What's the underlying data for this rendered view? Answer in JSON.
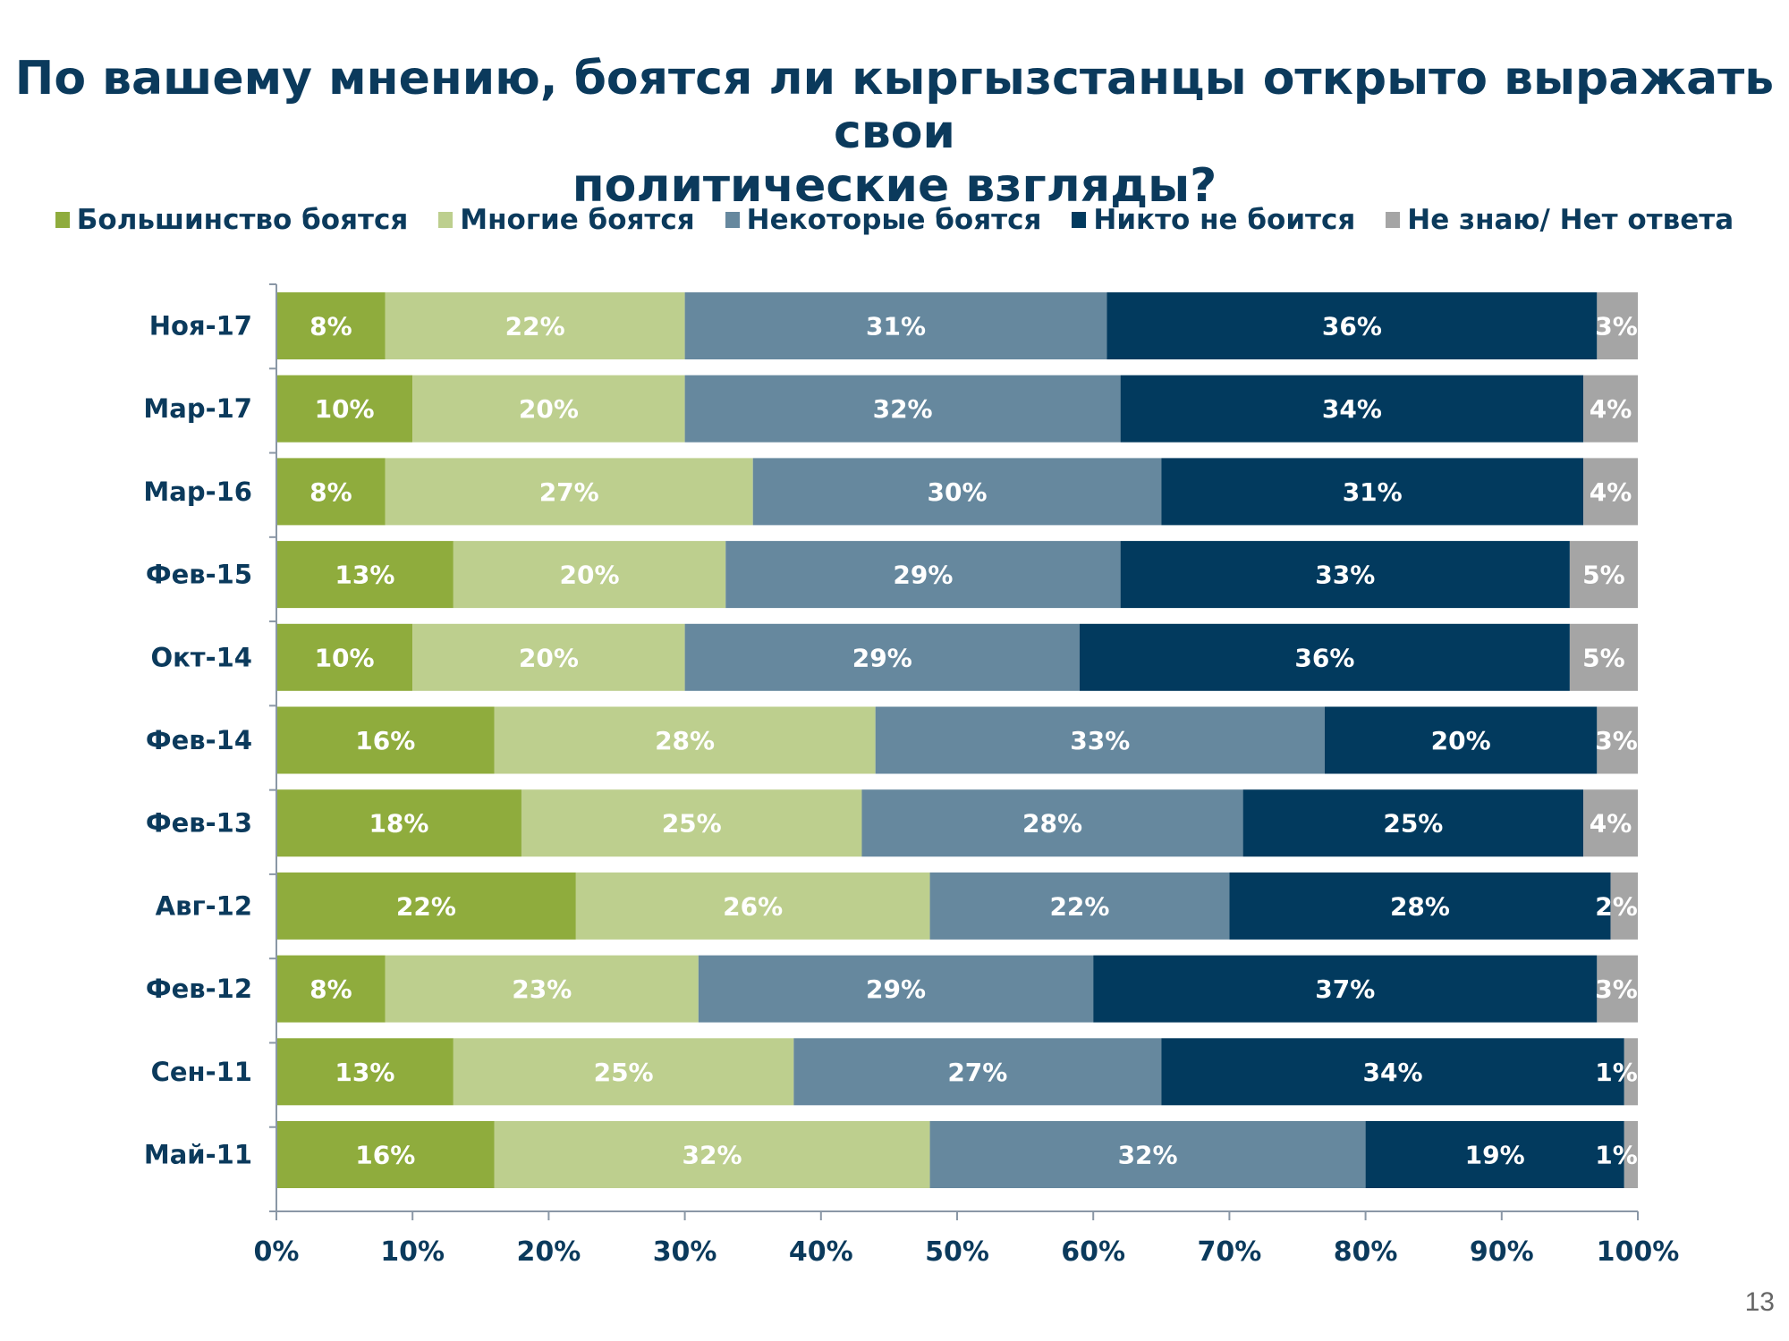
{
  "page_number": "13",
  "chart_data": {
    "type": "bar",
    "orientation": "horizontal",
    "stacked": true,
    "title": "По вашему мнению, боятся ли кыргызстанцы открыто выражать свои политические взгляды?",
    "title_lines": [
      "По вашему мнению, боятся ли кыргызстанцы открыто выражать свои",
      "политические взгляды?"
    ],
    "categories": [
      "Ноя-17",
      "Мар-17",
      "Мар-16",
      "Фев-15",
      "Окт-14",
      "Фев-14",
      "Фев-13",
      "Авг-12",
      "Фев-12",
      "Сен-11",
      "Май-11"
    ],
    "series": [
      {
        "name": "Большинство боятся",
        "color": "#8fac3d",
        "values": [
          8,
          10,
          8,
          13,
          10,
          16,
          18,
          22,
          8,
          13,
          16
        ]
      },
      {
        "name": "Многие боятся",
        "color": "#bdcf8e",
        "values": [
          22,
          20,
          27,
          20,
          20,
          28,
          25,
          26,
          23,
          25,
          32
        ]
      },
      {
        "name": "Некоторые боятся",
        "color": "#66889e",
        "values": [
          31,
          32,
          30,
          29,
          29,
          33,
          28,
          22,
          29,
          27,
          32
        ]
      },
      {
        "name": "Никто не боится",
        "color": "#023a5e",
        "values": [
          36,
          34,
          31,
          33,
          36,
          20,
          25,
          28,
          37,
          34,
          19
        ]
      },
      {
        "name": "Не знаю/ Нет ответа",
        "color": "#a5a5a5",
        "values": [
          3,
          4,
          4,
          5,
          5,
          3,
          4,
          2,
          3,
          1,
          1
        ]
      }
    ],
    "xlabel": "",
    "ylabel": "",
    "xlim": [
      0,
      100
    ],
    "x_ticks": [
      "0%",
      "10%",
      "20%",
      "30%",
      "40%",
      "50%",
      "60%",
      "70%",
      "80%",
      "90%",
      "100%"
    ],
    "value_suffix": "%",
    "legend_position": "top",
    "grid": false
  }
}
